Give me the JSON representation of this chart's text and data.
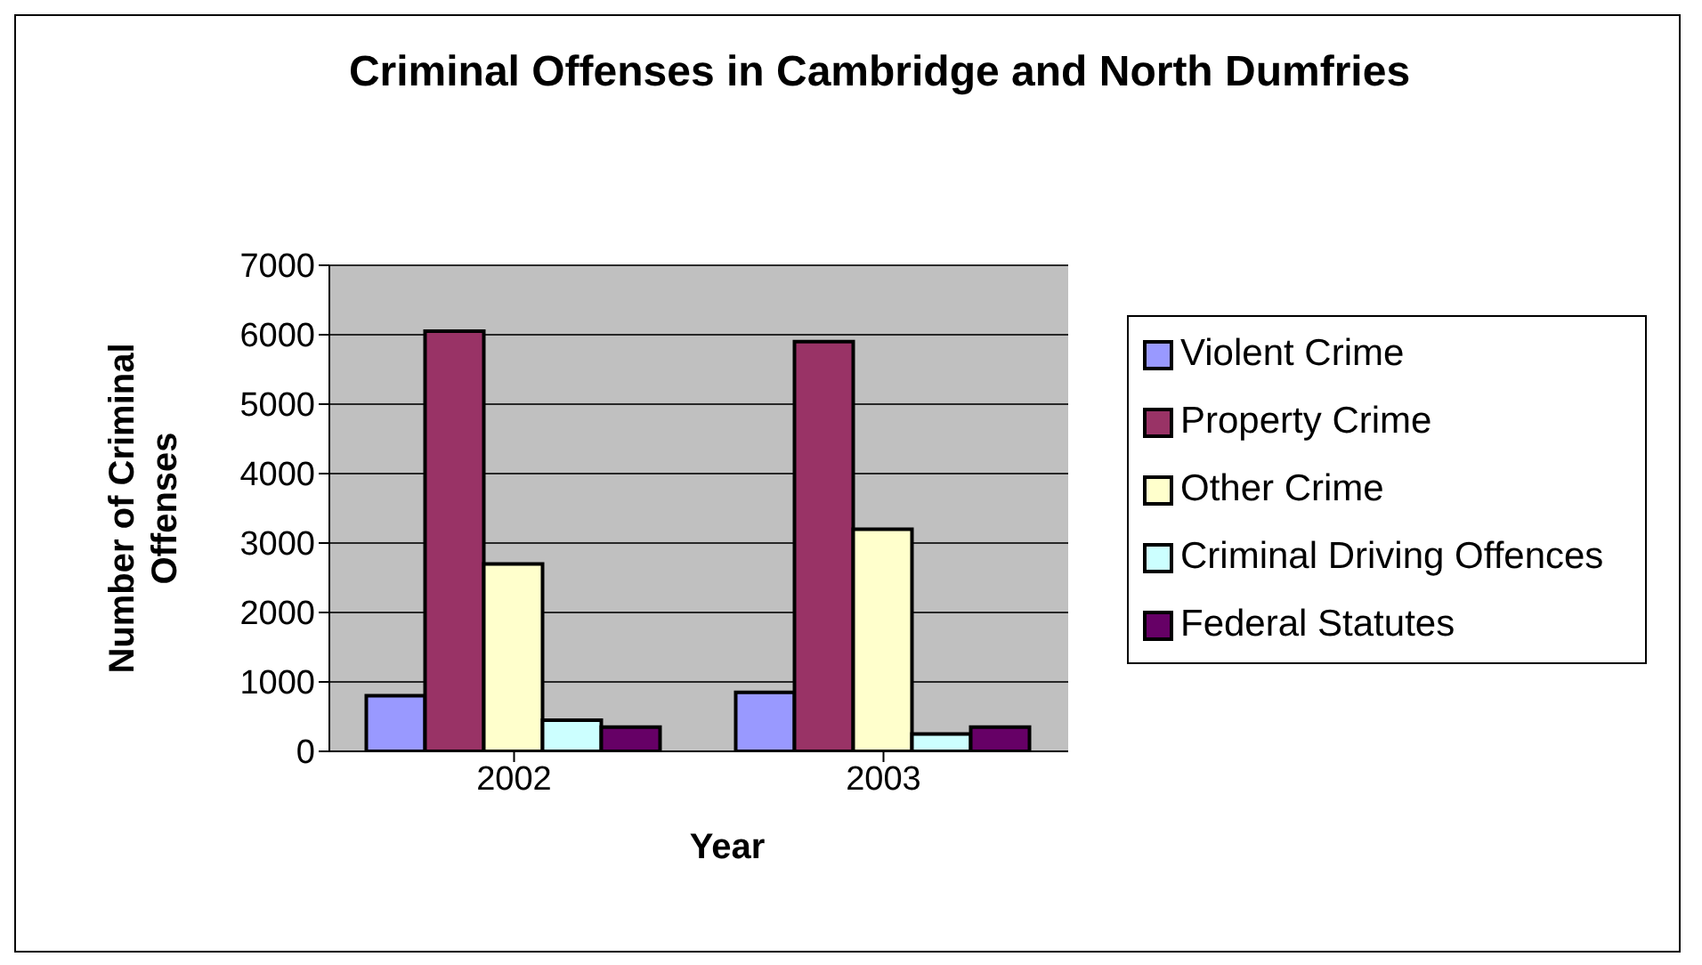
{
  "chart_data": {
    "type": "bar",
    "title": "Criminal Offenses in Cambridge and North Dumfries",
    "xlabel": "Year",
    "ylabel": "Number of Criminal Offenses",
    "categories": [
      "2002",
      "2003"
    ],
    "series": [
      {
        "name": "Violent Crime",
        "color": "#9999ff",
        "values": [
          800,
          850
        ]
      },
      {
        "name": "Property Crime",
        "color": "#993366",
        "values": [
          6050,
          5900
        ]
      },
      {
        "name": "Other Crime",
        "color": "#ffffcc",
        "values": [
          2700,
          3200
        ]
      },
      {
        "name": "Criminal Driving Offences",
        "color": "#ccffff",
        "values": [
          450,
          250
        ]
      },
      {
        "name": "Federal Statutes",
        "color": "#660066",
        "values": [
          350,
          350
        ]
      }
    ],
    "ylim": [
      0,
      7000
    ],
    "yticks": [
      0,
      1000,
      2000,
      3000,
      4000,
      5000,
      6000,
      7000
    ],
    "grid": "y",
    "legend": "right"
  }
}
